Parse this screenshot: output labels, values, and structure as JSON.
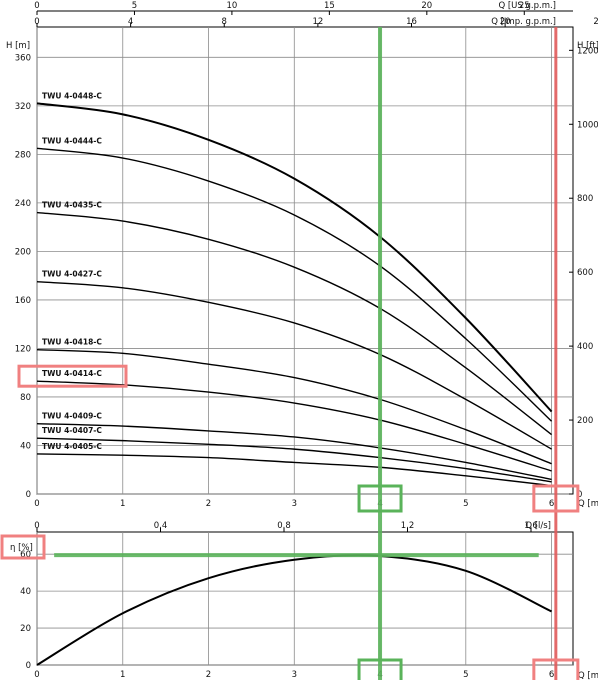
{
  "chart_data": [
    {
      "type": "line",
      "title": "",
      "top_axis_1": {
        "label": "Q [US g.p.m.]",
        "ticks": [
          "0",
          "5",
          "10",
          "15",
          "20",
          "25"
        ],
        "lim": [
          0,
          27.5
        ]
      },
      "top_axis_2": {
        "label": "Q [Imp. g.p.m.]",
        "ticks": [
          "0",
          "4",
          "8",
          "12",
          "16",
          "20",
          "24"
        ],
        "lim": [
          0,
          22.9
        ]
      },
      "xlabel": "Q [m³/h]",
      "ylabel": "H [m]",
      "ylabel_right": "H [ft]",
      "x_ticks": [
        "0",
        "1",
        "2",
        "3",
        "4",
        "5",
        "6"
      ],
      "y_ticks": [
        "0",
        "40",
        "80",
        "120",
        "160",
        "200",
        "240",
        "280",
        "320",
        "360"
      ],
      "y_right_ticks": [
        "0",
        "200",
        "400",
        "600",
        "800",
        "1000",
        "1200"
      ],
      "xlim": [
        0,
        6.25
      ],
      "ylim": [
        0,
        385
      ],
      "grid": true,
      "series": [
        {
          "name": "TWU 4-0448-C",
          "x": [
            0,
            1,
            2,
            3,
            4,
            5,
            6
          ],
          "y": [
            322,
            313,
            292,
            260,
            212,
            145,
            68
          ]
        },
        {
          "name": "TWU 4-0444-C",
          "x": [
            0,
            1,
            2,
            3,
            4,
            5,
            6
          ],
          "y": [
            285,
            277,
            258,
            230,
            188,
            128,
            60
          ]
        },
        {
          "name": "TWU 4-0435-C",
          "x": [
            0,
            1,
            2,
            3,
            4,
            5,
            6
          ],
          "y": [
            232,
            225,
            210,
            187,
            153,
            104,
            49
          ]
        },
        {
          "name": "TWU 4-0427-C",
          "x": [
            0,
            1,
            2,
            3,
            4,
            5,
            6
          ],
          "y": [
            175,
            170,
            158,
            141,
            115,
            78,
            37
          ]
        },
        {
          "name": "TWU 4-0418-C",
          "x": [
            0,
            1,
            2,
            3,
            4,
            5,
            6
          ],
          "y": [
            119,
            116,
            107,
            96,
            78,
            53,
            25
          ]
        },
        {
          "name": "TWU 4-0414-C",
          "x": [
            0,
            1,
            2,
            3,
            4,
            5,
            6
          ],
          "y": [
            93,
            90,
            84,
            75,
            61,
            41,
            19
          ]
        },
        {
          "name": "TWU 4-0409-C",
          "x": [
            0,
            1,
            2,
            3,
            4,
            5,
            6
          ],
          "y": [
            58,
            56,
            52,
            47,
            38,
            26,
            12
          ]
        },
        {
          "name": "TWU 4-0407-C",
          "x": [
            0,
            1,
            2,
            3,
            4,
            5,
            6
          ],
          "y": [
            46,
            44,
            41,
            37,
            30,
            21,
            10
          ]
        },
        {
          "name": "TWU 4-0405-C",
          "x": [
            0,
            1,
            2,
            3,
            4,
            5,
            6
          ],
          "y": [
            33,
            32,
            30,
            26,
            22,
            15,
            7
          ]
        }
      ],
      "annotations": {
        "green_vertical_x": 4,
        "red_vertical_x": 6.05,
        "highlighted_label": "TWU 4-0414-C",
        "highlighted_ticks": [
          "4",
          "6"
        ]
      }
    },
    {
      "type": "line",
      "title": "",
      "top_axis": {
        "label": "Q [l/s]",
        "ticks": [
          "0",
          "0.4",
          "0.8",
          "1.2",
          "1.6"
        ],
        "lim": [
          0,
          1.736
        ]
      },
      "xlabel": "Q [m³/h]",
      "ylabel": "η [%]",
      "x_ticks": [
        "0",
        "1",
        "2",
        "3",
        "4",
        "5",
        "6"
      ],
      "y_ticks": [
        "0",
        "20",
        "40",
        "60"
      ],
      "xlim": [
        0,
        6.25
      ],
      "ylim": [
        0,
        72
      ],
      "grid": true,
      "series": [
        {
          "x": [
            0,
            1,
            2,
            3,
            4,
            5,
            6
          ],
          "y": [
            0,
            28,
            47,
            57,
            59,
            51,
            29
          ]
        }
      ],
      "annotations": {
        "green_horizontal_y": 60,
        "green_vertical_x": 4,
        "red_vertical_x": 6.05,
        "highlighted_ticks": [
          "4",
          "6"
        ],
        "highlighted_ylabel": "η [%]"
      }
    }
  ],
  "colors": {
    "grid": "#8c8c8c",
    "curve": "#000000",
    "green": "#5ab35a",
    "red": "#e05a5a",
    "pinkBox": "#f08080"
  }
}
